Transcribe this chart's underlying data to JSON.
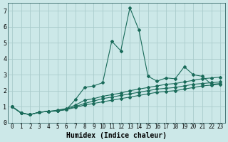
{
  "xlabel": "Humidex (Indice chaleur)",
  "background_color": "#cce8e8",
  "grid_color": "#aacccc",
  "line_color": "#1a6b5a",
  "xlim": [
    -0.5,
    23.5
  ],
  "ylim": [
    0,
    7.5
  ],
  "xticks": [
    0,
    1,
    2,
    3,
    4,
    5,
    6,
    7,
    8,
    9,
    10,
    11,
    12,
    13,
    14,
    15,
    16,
    17,
    18,
    19,
    20,
    21,
    22,
    23
  ],
  "yticks": [
    0,
    1,
    2,
    3,
    4,
    5,
    6,
    7
  ],
  "series": [
    [
      1.0,
      0.6,
      0.5,
      0.65,
      0.7,
      0.72,
      0.82,
      1.45,
      2.2,
      2.3,
      2.5,
      5.1,
      4.5,
      7.2,
      5.8,
      2.9,
      2.6,
      2.8,
      2.75,
      3.5,
      3.0,
      2.9,
      2.4,
      2.45
    ],
    [
      1.0,
      0.6,
      0.5,
      0.65,
      0.7,
      0.78,
      0.88,
      1.1,
      1.4,
      1.5,
      1.65,
      1.75,
      1.85,
      2.0,
      2.1,
      2.2,
      2.3,
      2.4,
      2.45,
      2.55,
      2.65,
      2.75,
      2.8,
      2.85
    ],
    [
      1.0,
      0.6,
      0.5,
      0.65,
      0.7,
      0.75,
      0.85,
      1.0,
      1.2,
      1.35,
      1.5,
      1.6,
      1.7,
      1.8,
      1.9,
      2.0,
      2.1,
      2.15,
      2.2,
      2.3,
      2.4,
      2.45,
      2.5,
      2.55
    ],
    [
      1.0,
      0.6,
      0.5,
      0.65,
      0.7,
      0.73,
      0.82,
      0.95,
      1.1,
      1.2,
      1.3,
      1.4,
      1.5,
      1.6,
      1.7,
      1.8,
      1.9,
      1.95,
      2.0,
      2.1,
      2.2,
      2.3,
      2.35,
      2.4
    ]
  ],
  "marker": "D",
  "marker_size": 2.0,
  "linewidth": 0.8,
  "tick_fontsize": 5.5,
  "xlabel_fontsize": 7.0
}
